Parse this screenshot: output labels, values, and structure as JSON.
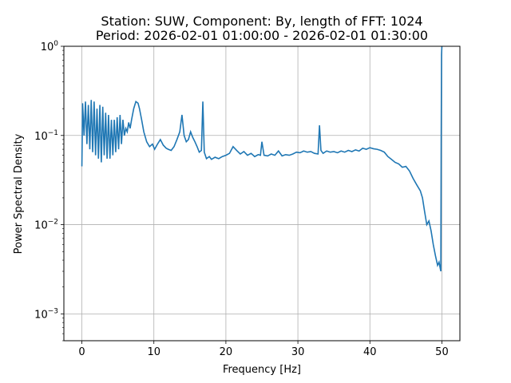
{
  "chart_data": {
    "type": "line",
    "title_line1": "Station: SUW, Component: By, length of FFT: 1024",
    "title_line2": "Period: 2026-02-01 01:00:00 - 2026-02-01 01:30:00",
    "xlabel": "Frequency [Hz]",
    "ylabel": "Power Spectral Density",
    "xlim": [
      -2.5,
      52.5
    ],
    "ylim": [
      0.0005,
      1
    ],
    "yscale": "log",
    "grid": true,
    "x_ticks": [
      0,
      10,
      20,
      30,
      40,
      50
    ],
    "x_tick_labels": [
      "0",
      "10",
      "20",
      "30",
      "40",
      "50"
    ],
    "y_ticks": [
      0.001,
      0.01,
      0.1,
      1
    ],
    "y_tick_bases": [
      "10",
      "10",
      "10",
      "10"
    ],
    "y_tick_exponents": [
      "−3",
      "−2",
      "−1",
      "0"
    ],
    "line_color": "#1f77b4",
    "series": [
      {
        "x": [
          0.0,
          0.1,
          0.3,
          0.5,
          0.7,
          0.9,
          1.1,
          1.3,
          1.5,
          1.7,
          1.9,
          2.1,
          2.3,
          2.5,
          2.7,
          2.9,
          3.1,
          3.3,
          3.5,
          3.7,
          3.9,
          4.1,
          4.3,
          4.5,
          4.7,
          4.9,
          5.1,
          5.3,
          5.5,
          5.7,
          5.9,
          6.1,
          6.3,
          6.5,
          6.7,
          6.9,
          7.2,
          7.5,
          7.8,
          8.0,
          8.3,
          8.6,
          9.0,
          9.4,
          9.8,
          10.1,
          10.5,
          10.9,
          11.3,
          11.7,
          12.0,
          12.4,
          12.8,
          13.2,
          13.6,
          13.9,
          14.2,
          14.5,
          14.8,
          15.1,
          15.4,
          15.7,
          16.0,
          16.3,
          16.6,
          16.8,
          17.0,
          17.3,
          17.7,
          18.0,
          18.5,
          19.0,
          19.5,
          20.0,
          20.5,
          21.0,
          21.5,
          22.0,
          22.5,
          23.0,
          23.5,
          24.0,
          24.5,
          24.8,
          25.0,
          25.3,
          25.8,
          26.3,
          26.8,
          27.3,
          27.8,
          28.3,
          28.8,
          29.3,
          29.8,
          30.3,
          30.8,
          31.3,
          31.8,
          32.3,
          32.8,
          33.0,
          33.2,
          33.5,
          34.0,
          34.5,
          35.0,
          35.5,
          36.0,
          36.5,
          37.0,
          37.5,
          38.0,
          38.5,
          39.0,
          39.5,
          40.0,
          40.5,
          41.0,
          41.5,
          42.0,
          42.5,
          43.0,
          43.5,
          44.0,
          44.5,
          45.0,
          45.5,
          46.0,
          46.5,
          47.0,
          47.3,
          47.6,
          47.9,
          48.2,
          48.5,
          48.8,
          49.1,
          49.4,
          49.6,
          49.75,
          49.85,
          49.9,
          49.95,
          50.0
        ],
        "y": [
          0.045,
          0.23,
          0.1,
          0.24,
          0.08,
          0.22,
          0.07,
          0.25,
          0.065,
          0.24,
          0.06,
          0.2,
          0.055,
          0.22,
          0.05,
          0.21,
          0.06,
          0.18,
          0.055,
          0.17,
          0.055,
          0.15,
          0.06,
          0.15,
          0.065,
          0.16,
          0.07,
          0.17,
          0.08,
          0.15,
          0.1,
          0.12,
          0.11,
          0.14,
          0.12,
          0.15,
          0.2,
          0.24,
          0.23,
          0.2,
          0.15,
          0.11,
          0.085,
          0.075,
          0.08,
          0.07,
          0.08,
          0.09,
          0.078,
          0.072,
          0.07,
          0.068,
          0.075,
          0.09,
          0.11,
          0.17,
          0.1,
          0.085,
          0.09,
          0.11,
          0.095,
          0.085,
          0.075,
          0.065,
          0.068,
          0.24,
          0.065,
          0.055,
          0.058,
          0.054,
          0.057,
          0.055,
          0.058,
          0.06,
          0.063,
          0.075,
          0.068,
          0.062,
          0.066,
          0.06,
          0.063,
          0.058,
          0.061,
          0.06,
          0.085,
          0.06,
          0.059,
          0.062,
          0.06,
          0.067,
          0.059,
          0.061,
          0.06,
          0.062,
          0.065,
          0.064,
          0.067,
          0.065,
          0.066,
          0.063,
          0.062,
          0.13,
          0.068,
          0.063,
          0.067,
          0.065,
          0.066,
          0.064,
          0.067,
          0.065,
          0.068,
          0.066,
          0.069,
          0.067,
          0.072,
          0.07,
          0.073,
          0.071,
          0.07,
          0.068,
          0.065,
          0.058,
          0.054,
          0.05,
          0.048,
          0.044,
          0.045,
          0.04,
          0.033,
          0.028,
          0.024,
          0.02,
          0.014,
          0.01,
          0.011,
          0.0085,
          0.006,
          0.0045,
          0.0035,
          0.0038,
          0.0033,
          0.003,
          0.08,
          0.8,
          1.0
        ]
      }
    ]
  }
}
